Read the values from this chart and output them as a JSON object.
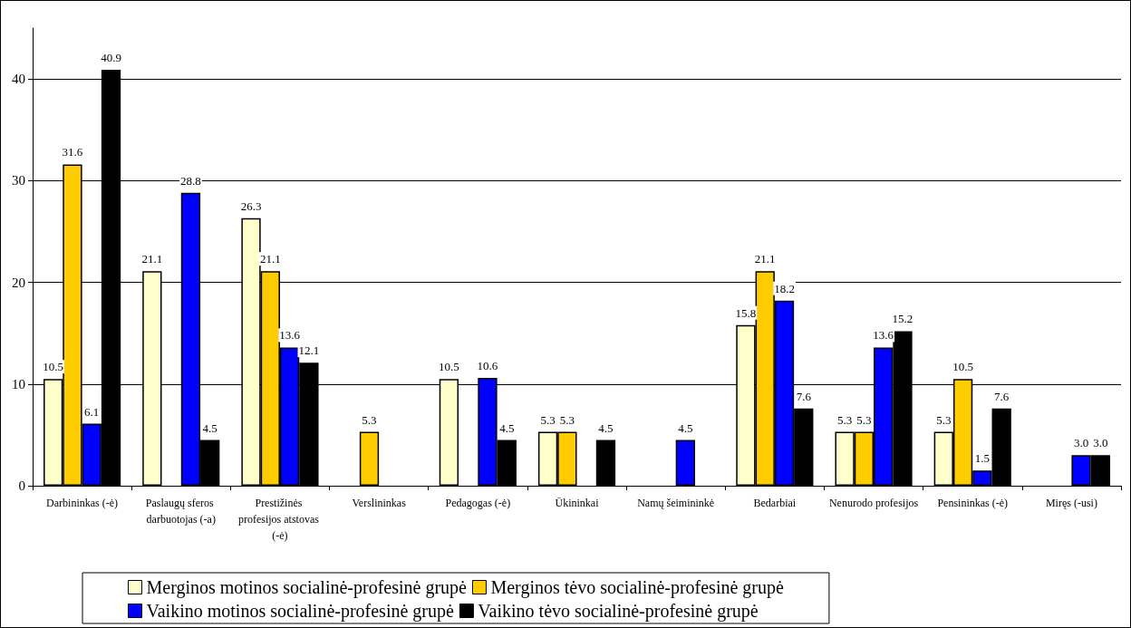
{
  "chart_data": {
    "type": "bar",
    "categories": [
      "Darbininkas (-ė)",
      "Paslaugų sferos darbuotojas (-a)",
      "Prestižinės profesijos atstovas (-ė)",
      "Verslininkas",
      "Pedagogas (-ė)",
      "Ūkininkai",
      "Namų šeimininkė",
      "Bedarbiai",
      "Nenurodo profesijos",
      "Pensininkas (-ė)",
      "Miręs (-usi)"
    ],
    "series": [
      {
        "name": "Merginos motinos socialinė-profesinė grupė",
        "color": "#ffffcc",
        "values": [
          10.5,
          21.1,
          26.3,
          null,
          10.5,
          5.3,
          null,
          15.8,
          5.3,
          5.3,
          null
        ],
        "value_labels": [
          "10.5",
          "21.1",
          "26.3",
          null,
          "10.5",
          "5.3",
          null,
          "15.8",
          "5.3",
          "5.3",
          null
        ]
      },
      {
        "name": "Merginos tėvo socialinė-profesinė grupė",
        "color": "#ffcc00",
        "values": [
          31.6,
          null,
          21.1,
          5.3,
          null,
          5.3,
          null,
          21.1,
          5.3,
          10.5,
          null
        ],
        "value_labels": [
          "31.6",
          null,
          "21.1",
          "5.3",
          null,
          "5.3",
          null,
          "21.1",
          "5.3",
          "10.5",
          null
        ]
      },
      {
        "name": "Vaikino motinos socialinė-profesinė grupė",
        "color": "#0000ff",
        "values": [
          6.1,
          28.8,
          13.6,
          null,
          10.6,
          null,
          4.5,
          18.2,
          13.6,
          1.5,
          3.0
        ],
        "value_labels": [
          "6.1",
          "28.8",
          "13.6",
          null,
          "10.6",
          null,
          "4.5",
          "18.2",
          "13.6",
          "1.5",
          "3.0"
        ]
      },
      {
        "name": "Vaikino tėvo socialinė-profesinė grupė",
        "color": "#000000",
        "values": [
          40.9,
          4.5,
          12.1,
          null,
          4.5,
          4.5,
          null,
          7.6,
          15.2,
          7.6,
          3.0
        ],
        "value_labels": [
          "40.9",
          "4.5",
          "12.1",
          null,
          "4.5",
          "4.5",
          null,
          "7.6",
          "15.2",
          "7.6",
          "3.0"
        ]
      }
    ],
    "ylim": [
      0,
      45
    ],
    "yticks": [
      0,
      10,
      20,
      30,
      40
    ],
    "grid": "y",
    "legend": "bottom"
  }
}
